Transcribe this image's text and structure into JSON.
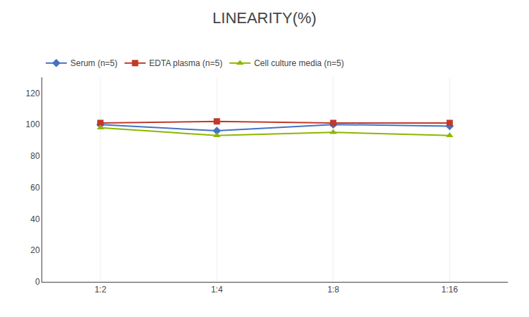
{
  "chart_data": {
    "type": "line",
    "title": "LINEARITY(%)",
    "categories": [
      "1:2",
      "1:4",
      "1:8",
      "1:16"
    ],
    "series": [
      {
        "name": "Serum (n=5)",
        "color": "#4472C4",
        "marker": "diamond",
        "values": [
          100,
          96,
          100,
          99
        ]
      },
      {
        "name": "EDTA plasma (n=5)",
        "color": "#C0392B",
        "marker": "square",
        "values": [
          101,
          102,
          101,
          101
        ]
      },
      {
        "name": "Cell culture media (n=5)",
        "color": "#8DB600",
        "marker": "triangle-up",
        "values": [
          98,
          93,
          95,
          93
        ]
      }
    ],
    "ylim": [
      0,
      130
    ],
    "yticks": [
      0,
      20,
      40,
      60,
      80,
      100,
      120
    ],
    "grid": "x",
    "legend": "top"
  }
}
